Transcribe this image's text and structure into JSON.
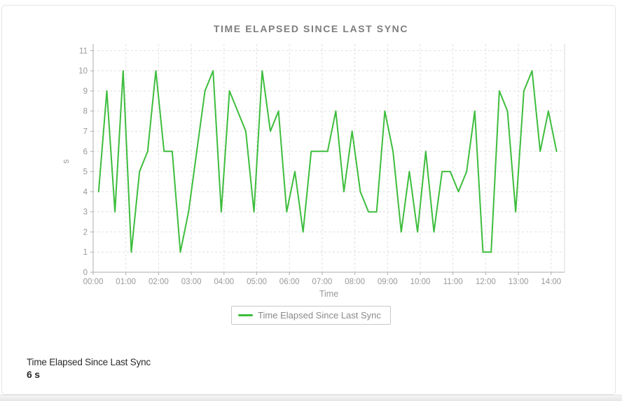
{
  "colors": {
    "line": "#3dbd3d",
    "grid": "#e0e0e0",
    "axis": "#aeaeae",
    "plot_border": "#d9d9d9",
    "tick_text": "#999999",
    "title_text": "#7d7d7d",
    "legend_text": "#8a8a8a",
    "footer_text": "#2b2b2b"
  },
  "footer": {
    "metric_label": "Time Elapsed Since Last Sync",
    "metric_value": "6 s"
  },
  "chart_data": {
    "type": "line",
    "title": "TIME ELAPSED SINCE LAST SYNC",
    "xlabel": "Time",
    "ylabel": "s",
    "ylim": [
      0,
      11
    ],
    "grid": true,
    "legend_position": "bottom",
    "x_ticks": [
      "00:00",
      "01:00",
      "02:00",
      "03:00",
      "04:00",
      "05:00",
      "06:00",
      "07:00",
      "08:00",
      "09:00",
      "10:00",
      "11:00",
      "12:00",
      "13:00",
      "14:00"
    ],
    "x_start_minutes": 10,
    "x_interval_minutes": 15,
    "series": [
      {
        "name": "Time Elapsed Since Last Sync",
        "color": "#3dbd3d",
        "values": [
          4,
          9,
          3,
          10,
          1,
          5,
          6,
          10,
          6,
          6,
          1,
          3,
          6,
          9,
          10,
          3,
          9,
          8,
          7,
          3,
          10,
          7,
          8,
          3,
          5,
          2,
          6,
          6,
          6,
          8,
          4,
          7,
          4,
          3,
          3,
          8,
          6,
          2,
          5,
          2,
          6,
          2,
          5,
          5,
          4,
          5,
          8,
          1,
          1,
          9,
          8,
          3,
          9,
          10,
          6,
          8,
          6
        ]
      }
    ]
  }
}
